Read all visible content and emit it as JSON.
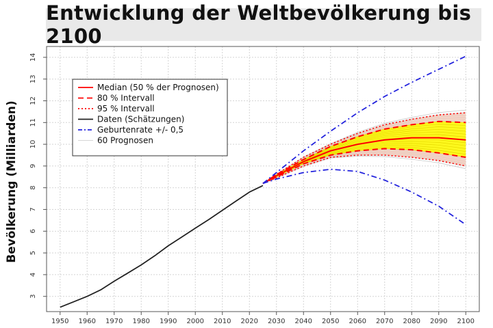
{
  "chart_data": {
    "type": "line",
    "title": "Entwicklung der Weltbevölkerung bis 2100",
    "xlabel": "",
    "ylabel": "Bevölkerung (Milliarden)",
    "xlim": [
      1945,
      2105
    ],
    "ylim": [
      2.3,
      14.5
    ],
    "x_ticks": [
      1950,
      1960,
      1970,
      1980,
      1990,
      2000,
      2010,
      2020,
      2030,
      2040,
      2050,
      2060,
      2070,
      2080,
      2090,
      2100
    ],
    "y_ticks": [
      3,
      4,
      5,
      6,
      7,
      8,
      9,
      10,
      11,
      12,
      13,
      14
    ],
    "grid": true,
    "legend_position": "top-left",
    "colors": {
      "median": "#ff0000",
      "data": "#222222",
      "fertility": "#2222dd",
      "projections": "#c8c8c8",
      "band95": "#f0c8b8",
      "band80": "#ffff00"
    },
    "series": [
      {
        "name": "Daten (Schätzungen)",
        "style": "solid",
        "color": "#222222",
        "x": [
          1950,
          1955,
          1960,
          1965,
          1970,
          1975,
          1980,
          1985,
          1990,
          1995,
          2000,
          2005,
          2010,
          2015,
          2020,
          2025
        ],
        "y": [
          2.5,
          2.75,
          3.0,
          3.3,
          3.7,
          4.07,
          4.45,
          4.87,
          5.33,
          5.73,
          6.14,
          6.54,
          6.96,
          7.38,
          7.8,
          8.1
        ]
      },
      {
        "name": "Median (50 % der Prognosen)",
        "style": "solid",
        "color": "#ff0000",
        "x": [
          2025,
          2030,
          2040,
          2050,
          2060,
          2070,
          2080,
          2090,
          2100
        ],
        "y": [
          8.2,
          8.55,
          9.2,
          9.7,
          10.0,
          10.2,
          10.3,
          10.3,
          10.2
        ]
      },
      {
        "name": "80 % Intervall",
        "style": "dashed",
        "color": "#ff0000",
        "x": [
          2025,
          2030,
          2040,
          2050,
          2060,
          2070,
          2080,
          2090,
          2100
        ],
        "y_upper": [
          8.2,
          8.6,
          9.3,
          9.9,
          10.35,
          10.7,
          10.9,
          11.05,
          11.0
        ],
        "y_lower": [
          8.2,
          8.5,
          9.1,
          9.5,
          9.7,
          9.8,
          9.75,
          9.6,
          9.4
        ]
      },
      {
        "name": "95 % Intervall",
        "style": "dotted",
        "color": "#ff0000",
        "x": [
          2025,
          2030,
          2040,
          2050,
          2060,
          2070,
          2080,
          2090,
          2100
        ],
        "y_upper": [
          8.2,
          8.62,
          9.4,
          10.0,
          10.5,
          10.9,
          11.15,
          11.35,
          11.45
        ],
        "y_lower": [
          8.2,
          8.45,
          9.0,
          9.4,
          9.5,
          9.5,
          9.4,
          9.25,
          9.0
        ]
      },
      {
        "name": "Geburtenrate +/- 0,5",
        "style": "dashdot",
        "color": "#2222dd",
        "x": [
          2025,
          2030,
          2040,
          2050,
          2060,
          2070,
          2080,
          2090,
          2100
        ],
        "y_upper": [
          8.2,
          8.7,
          9.7,
          10.6,
          11.45,
          12.2,
          12.85,
          13.45,
          14.05
        ],
        "y_lower": [
          8.2,
          8.4,
          8.7,
          8.85,
          8.75,
          8.35,
          7.8,
          7.15,
          6.3
        ]
      },
      {
        "name": "60 Prognosen",
        "style": "thin",
        "color": "#c8c8c8"
      }
    ],
    "legend": [
      {
        "label": "Median (50 % der Prognosen)",
        "style": "solid",
        "color": "#ff0000"
      },
      {
        "label": "80 % Intervall",
        "style": "dashed",
        "color": "#ff0000"
      },
      {
        "label": "95 % Intervall",
        "style": "dotted",
        "color": "#ff0000"
      },
      {
        "label": "Daten (Schätzungen)",
        "style": "solid",
        "color": "#222222"
      },
      {
        "label": "Geburtenrate +/- 0,5",
        "style": "dashdot",
        "color": "#2222dd"
      },
      {
        "label": "60 Prognosen",
        "style": "thin",
        "color": "#c8c8c8"
      }
    ]
  }
}
